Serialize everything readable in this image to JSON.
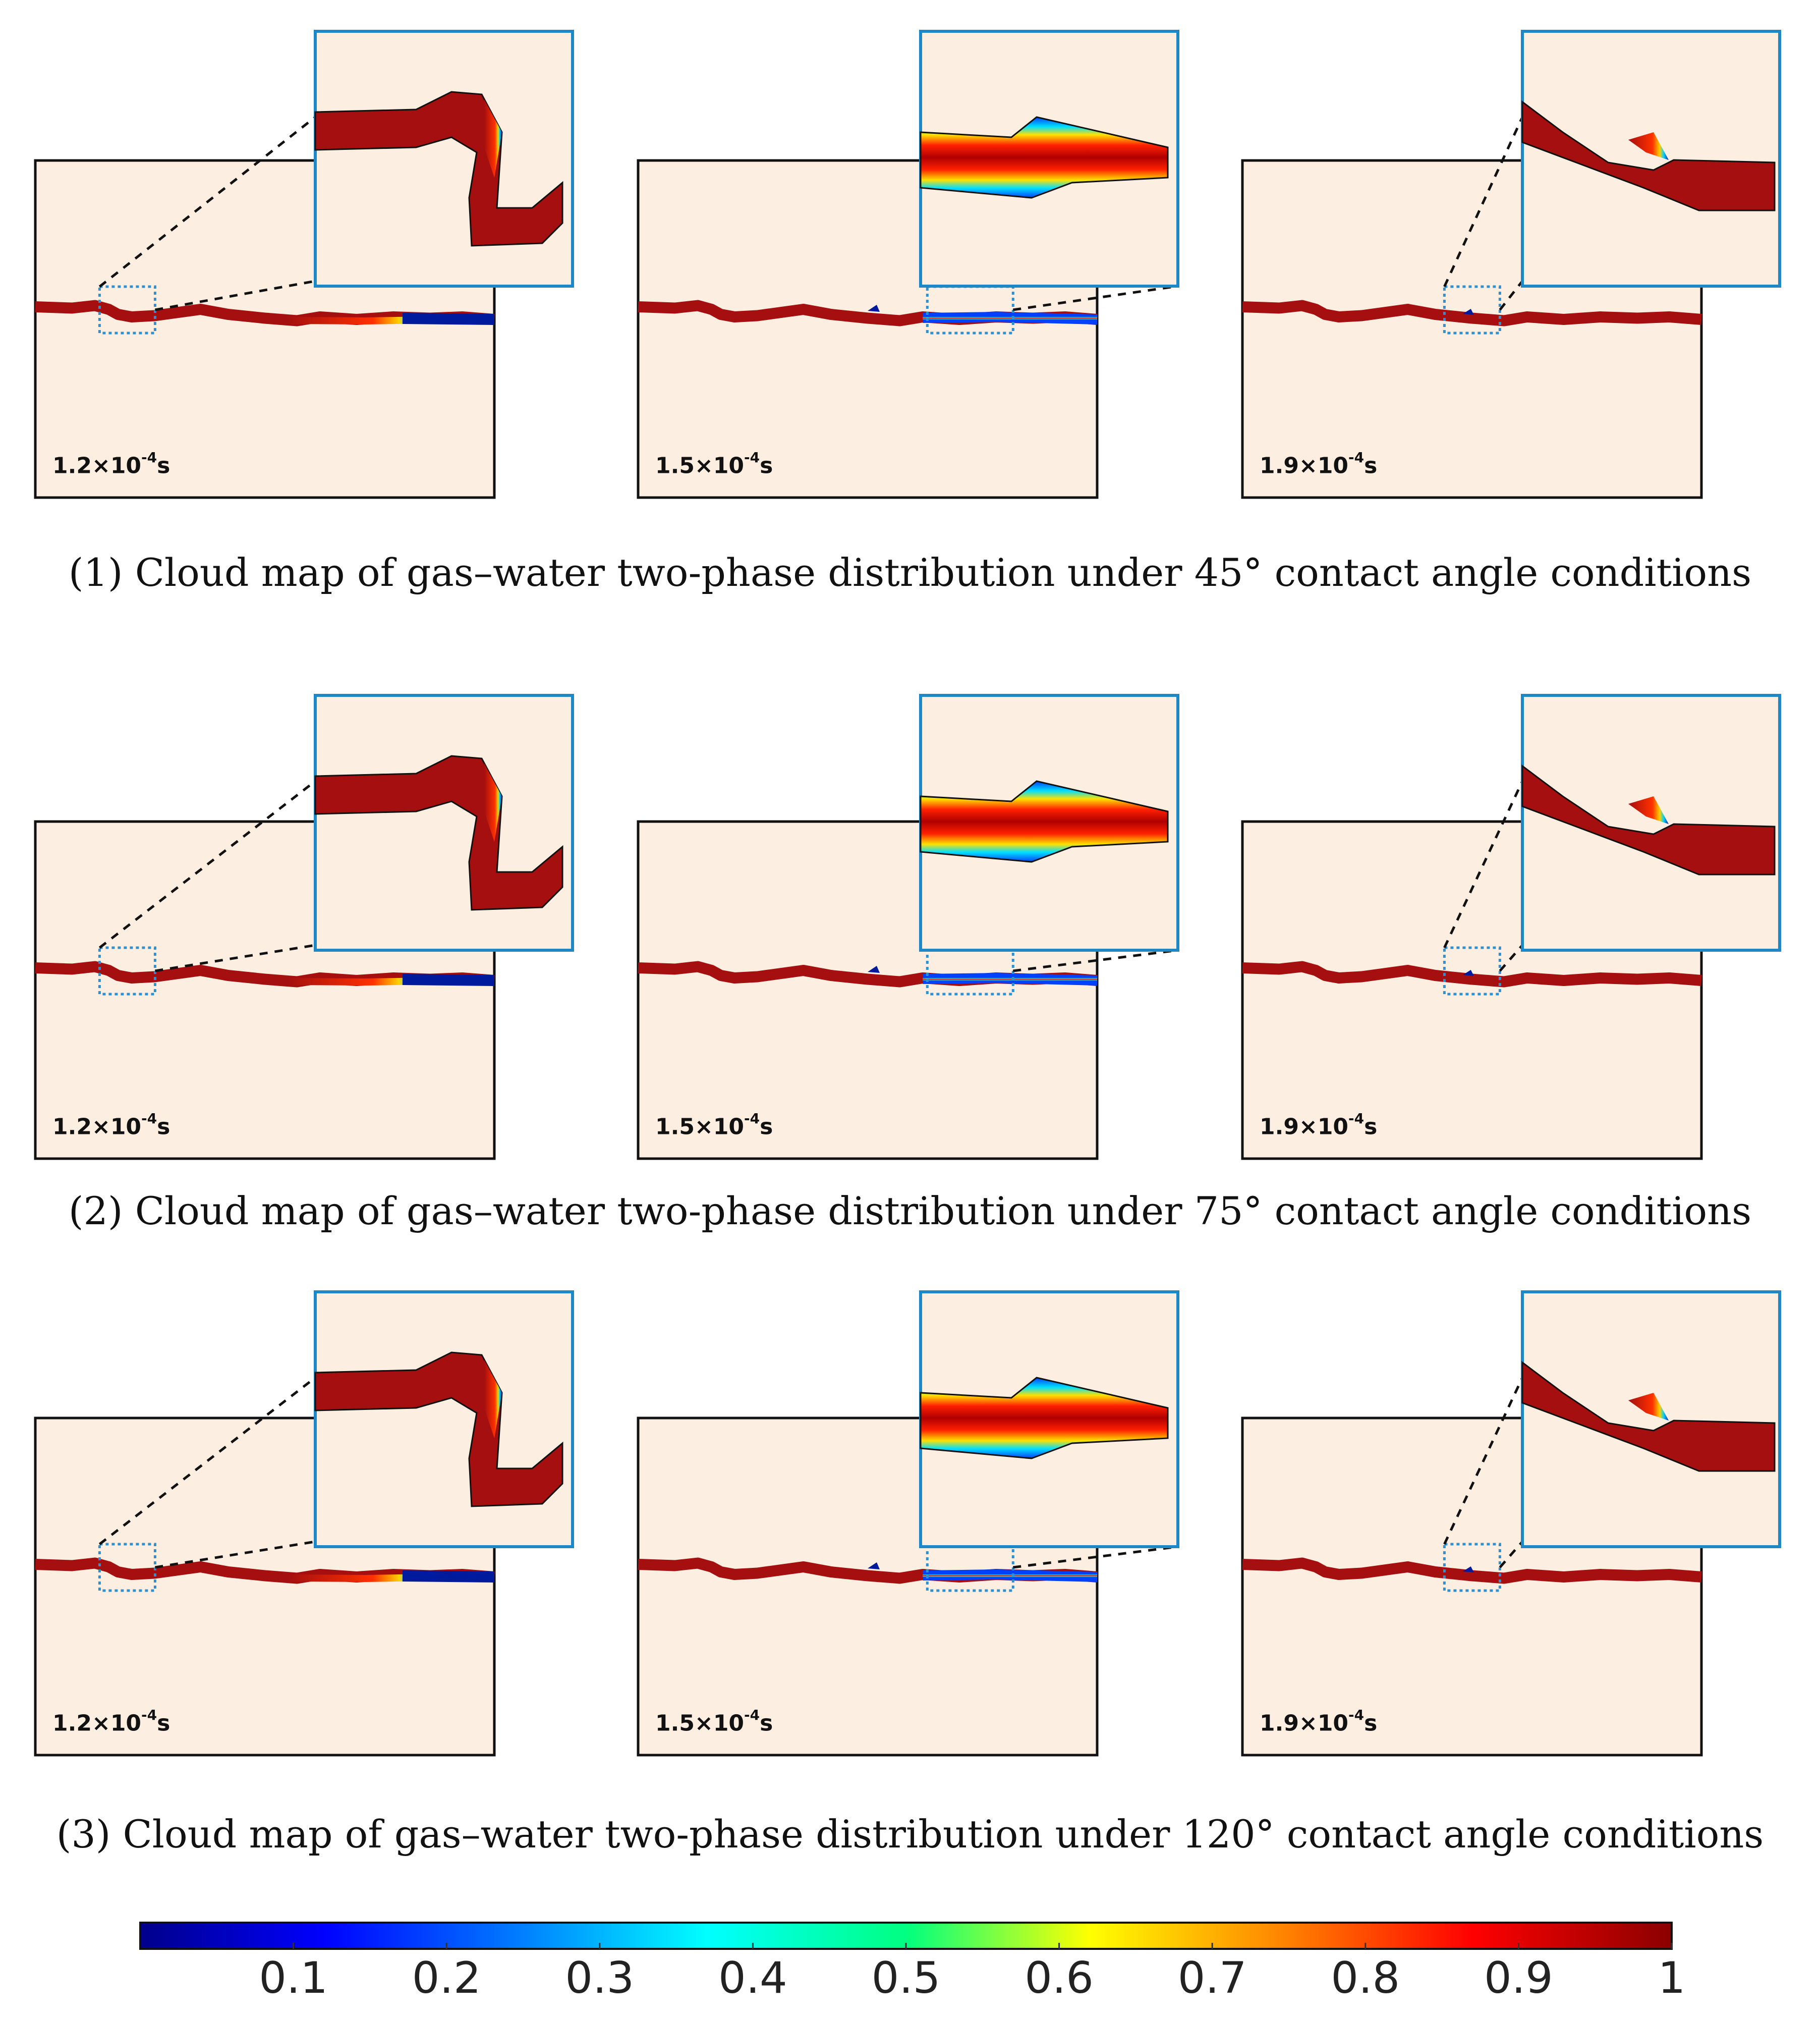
{
  "figure": {
    "rows": [
      {
        "caption": "(1) Cloud map of gas–water two-phase distribution under 45° contact angle conditions",
        "panels": [
          {
            "time": {
              "base": "1.2×10",
              "exp": "-4",
              "unit": "s"
            }
          },
          {
            "time": {
              "base": "1.5×10",
              "exp": "-4",
              "unit": "s"
            }
          },
          {
            "time": {
              "base": "1.9×10",
              "exp": "-4",
              "unit": "s"
            }
          }
        ]
      },
      {
        "caption": "(2) Cloud map of gas–water two-phase distribution under 75° contact angle conditions",
        "panels": [
          {
            "time": {
              "base": "1.2×10",
              "exp": "-4",
              "unit": "s"
            }
          },
          {
            "time": {
              "base": "1.5×10",
              "exp": "-4",
              "unit": "s"
            }
          },
          {
            "time": {
              "base": "1.9×10",
              "exp": "-4",
              "unit": "s"
            }
          }
        ]
      },
      {
        "caption": "(3) Cloud map of gas–water two-phase distribution under 120° contact angle conditions",
        "panels": [
          {
            "time": {
              "base": "1.2×10",
              "exp": "-4",
              "unit": "s"
            }
          },
          {
            "time": {
              "base": "1.5×10",
              "exp": "-4",
              "unit": "s"
            }
          },
          {
            "time": {
              "base": "1.9×10",
              "exp": "-4",
              "unit": "s"
            }
          }
        ]
      }
    ]
  },
  "colorbar": {
    "ticks": [
      "0.1",
      "0.2",
      "0.3",
      "0.4",
      "0.5",
      "0.6",
      "0.7",
      "0.8",
      "0.9",
      "1"
    ],
    "min": 0,
    "max": 1,
    "colors": [
      "#00008b",
      "#0000ff",
      "#0080ff",
      "#00ffff",
      "#00ff80",
      "#ffff00",
      "#ff8000",
      "#ff0000",
      "#8b0000"
    ]
  },
  "colors": {
    "background": "#fdeee2",
    "channel": "#a50f0f",
    "gas": "#001a9e",
    "inset_border": "#1e88c7",
    "zoom_box": "#2e90d0"
  }
}
